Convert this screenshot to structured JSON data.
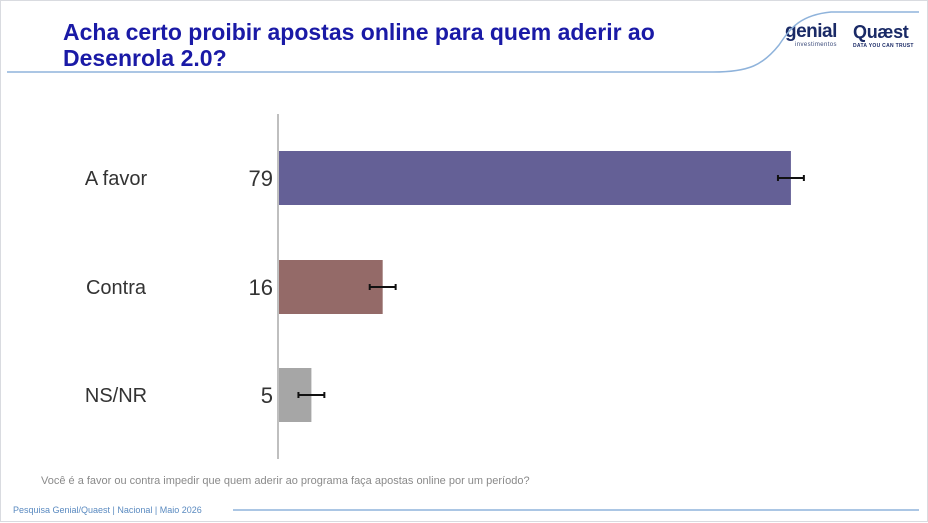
{
  "header": {
    "title": "Acha certo proibir apostas online para quem aderir ao Desenrola 2.0?",
    "logo_genial": "genial",
    "logo_genial_sub": "investimentos",
    "logo_quaest": "Quæst",
    "logo_quaest_sub": "DATA YOU CAN TRUST"
  },
  "footnote": "Você é a favor ou contra impedir que quem aderir ao programa faça apostas online por um período?",
  "footer": "Pesquisa Genial/Quaest | Nacional | Maio 2026",
  "colors": {
    "title": "#1a1aa6",
    "favor": "#646096",
    "contra": "#946a68",
    "nsnr": "#a6a6a6",
    "header_line": "#8fb3db"
  },
  "chart_data": {
    "type": "bar",
    "orientation": "horizontal",
    "categories": [
      "A favor",
      "Contra",
      "NS/NR"
    ],
    "values": [
      79,
      16,
      5
    ],
    "value_labels": [
      "79",
      "16",
      "5"
    ],
    "error_margin": 2,
    "xlim": [
      0,
      100
    ],
    "title": "Acha certo proibir apostas online para quem aderir ao Desenrola 2.0?",
    "xlabel": "",
    "ylabel": "",
    "grid": false,
    "legend": "none"
  }
}
